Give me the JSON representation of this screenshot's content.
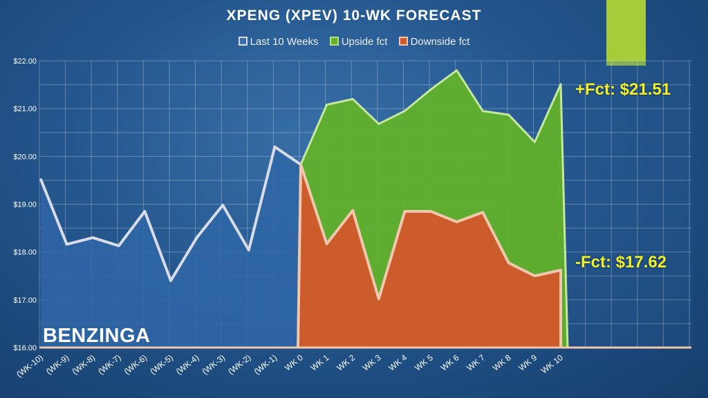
{
  "chart_data": {
    "type": "area",
    "title": "XPENG (XPEV) 10-WK FORECAST",
    "categories": [
      "(WK-10)",
      "(WK-9)",
      "(WK-8)",
      "(WK-7)",
      "(WK-6)",
      "(WK-5)",
      "(WK-4)",
      "(WK-3)",
      "(WK-2)",
      "(WK-1)",
      "WK 0",
      "WK 1",
      "WK 2",
      "WK 3",
      "WK 4",
      "WK 5",
      "WK 6",
      "WK 7",
      "WK 8",
      "WK 9",
      "WK 10"
    ],
    "series": [
      {
        "name": "Last 10 Weeks",
        "values": [
          19.52,
          18.16,
          18.3,
          18.13,
          18.85,
          17.4,
          18.3,
          18.98,
          18.04,
          20.2,
          19.83,
          null,
          null,
          null,
          null,
          null,
          null,
          null,
          null,
          null,
          null
        ]
      },
      {
        "name": "Upside fct",
        "values": [
          null,
          null,
          null,
          null,
          null,
          null,
          null,
          null,
          null,
          null,
          19.83,
          21.08,
          21.2,
          20.68,
          20.95,
          21.4,
          21.8,
          20.95,
          20.87,
          20.3,
          21.51
        ]
      },
      {
        "name": "Downside fct",
        "values": [
          null,
          null,
          null,
          null,
          null,
          null,
          null,
          null,
          null,
          null,
          19.83,
          18.17,
          18.87,
          17.02,
          18.85,
          18.85,
          18.63,
          18.83,
          17.77,
          17.5,
          17.62
        ]
      }
    ],
    "ylim": [
      16,
      22
    ],
    "yticks": [
      "$16.00",
      "$17.00",
      "$18.00",
      "$19.00",
      "$20.00",
      "$21.00",
      "$22.00"
    ],
    "grid": true,
    "legend_position": "top-center",
    "annotations": {
      "upside": "+Fct: $21.51",
      "downside": "-Fct: $17.62"
    },
    "colors": {
      "history": "#d8dce6",
      "upside": "#61b12a",
      "downside": "#d2572c",
      "baseline": "#f3c7ad"
    }
  },
  "brand": "BENZINGA",
  "colors": {
    "accent": "#a6cc3a",
    "label": "#f2ef2a",
    "background": "#23558c"
  }
}
